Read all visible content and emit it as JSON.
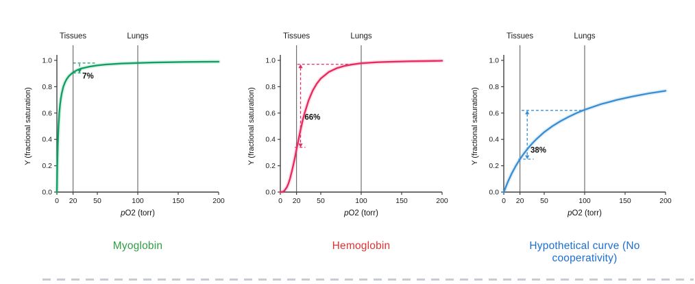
{
  "page": {
    "background": "#ffffff",
    "bottom_dash_color": "#c6ccd1",
    "axis_color": "#3f3f3f",
    "reference_line_color": "#6e6e6e"
  },
  "chart_data": [
    {
      "type": "line",
      "title": "Myoglobin",
      "title_color": "#2f9e44",
      "curve_color": "#119e63",
      "xlabel_prefix": "p",
      "xlabel_rest": "O2 (torr)",
      "ylabel": "Y (fractional saturation)",
      "xlim": [
        0,
        200
      ],
      "ylim": [
        0,
        1.0
      ],
      "x_ticks": [
        0,
        20,
        50,
        100,
        150,
        200
      ],
      "y_ticks": [
        0,
        0.2,
        0.4,
        0.6,
        0.8,
        1.0
      ],
      "ref_lines": [
        {
          "x": 20,
          "label": "Tissues"
        },
        {
          "x": 100,
          "label": "Lungs"
        }
      ],
      "y_at_tissues": 0.91,
      "y_at_lungs": 0.98,
      "points": [
        [
          0,
          0
        ],
        [
          0.5,
          0.2
        ],
        [
          1,
          0.333
        ],
        [
          1.5,
          0.429
        ],
        [
          2,
          0.5
        ],
        [
          3,
          0.6
        ],
        [
          4,
          0.667
        ],
        [
          5,
          0.714
        ],
        [
          6,
          0.75
        ],
        [
          8,
          0.8
        ],
        [
          10,
          0.833
        ],
        [
          12,
          0.857
        ],
        [
          15,
          0.882
        ],
        [
          20,
          0.909
        ],
        [
          25,
          0.926
        ],
        [
          30,
          0.938
        ],
        [
          40,
          0.952
        ],
        [
          50,
          0.962
        ],
        [
          60,
          0.968
        ],
        [
          80,
          0.976
        ],
        [
          100,
          0.98
        ],
        [
          120,
          0.984
        ],
        [
          140,
          0.986
        ],
        [
          160,
          0.988
        ],
        [
          180,
          0.989
        ],
        [
          200,
          0.99
        ]
      ],
      "annotation": {
        "label": "7%",
        "label_pos": [
          31.5,
          0.862
        ],
        "top_line": {
          "y": 0.98,
          "x1": 20,
          "x2": 47
        },
        "bottom_line": {
          "y": 0.905,
          "x1": 20,
          "x2": 33
        },
        "arrow": {
          "x": 28,
          "y1": 0.98,
          "y2": 0.905,
          "double": false
        }
      }
    },
    {
      "type": "line",
      "title": "Hemoglobin",
      "title_color": "#e23131",
      "curve_color": "#e72a5f",
      "xlabel_prefix": "p",
      "xlabel_rest": "O2 (torr)",
      "ylabel": "Y (fractional saturation)",
      "xlim": [
        0,
        200
      ],
      "ylim": [
        0,
        1.0
      ],
      "x_ticks": [
        0,
        20,
        50,
        100,
        150,
        200
      ],
      "y_ticks": [
        0,
        0.2,
        0.4,
        0.6,
        0.8,
        1.0
      ],
      "ref_lines": [
        {
          "x": 20,
          "label": "Tissues"
        },
        {
          "x": 100,
          "label": "Lungs"
        }
      ],
      "y_at_tissues": 0.32,
      "y_at_lungs": 0.98,
      "points": [
        [
          0,
          0
        ],
        [
          3,
          0.002
        ],
        [
          5,
          0.01
        ],
        [
          8,
          0.036
        ],
        [
          10,
          0.064
        ],
        [
          12,
          0.103
        ],
        [
          15,
          0.177
        ],
        [
          18,
          0.259
        ],
        [
          20,
          0.324
        ],
        [
          22,
          0.385
        ],
        [
          25,
          0.473
        ],
        [
          28,
          0.552
        ],
        [
          30,
          0.599
        ],
        [
          35,
          0.697
        ],
        [
          40,
          0.77
        ],
        [
          45,
          0.823
        ],
        [
          50,
          0.862
        ],
        [
          60,
          0.912
        ],
        [
          70,
          0.941
        ],
        [
          80,
          0.959
        ],
        [
          90,
          0.97
        ],
        [
          100,
          0.978
        ],
        [
          120,
          0.986
        ],
        [
          140,
          0.99
        ],
        [
          160,
          0.993
        ],
        [
          180,
          0.995
        ],
        [
          200,
          0.997
        ]
      ],
      "annotation": {
        "label": "66%",
        "label_pos": [
          30,
          0.55
        ],
        "top_line": {
          "y": 0.97,
          "x1": 21,
          "x2": 90
        },
        "bottom_line": {
          "y": 0.34,
          "x1": 18,
          "x2": 31
        },
        "arrow": {
          "x": 25,
          "y1": 0.97,
          "y2": 0.34,
          "double": true
        }
      }
    },
    {
      "type": "line",
      "title": "Hypothetical curve (No cooperativity)",
      "title_color": "#1b6ed6",
      "curve_color": "#3b8ed2",
      "xlabel_prefix": "p",
      "xlabel_rest": "O2 (torr)",
      "ylabel": "Y (fractional saturation)",
      "xlim": [
        0,
        200
      ],
      "ylim": [
        0,
        1.0
      ],
      "x_ticks": [
        0,
        20,
        50,
        100,
        150,
        200
      ],
      "y_ticks": [
        0,
        0.2,
        0.4,
        0.6,
        0.8,
        1.0
      ],
      "ref_lines": [
        {
          "x": 20,
          "label": "Tissues"
        },
        {
          "x": 100,
          "label": "Lungs"
        }
      ],
      "y_at_tissues": 0.25,
      "y_at_lungs": 0.62,
      "points": [
        [
          0,
          0
        ],
        [
          5,
          0.077
        ],
        [
          10,
          0.143
        ],
        [
          15,
          0.2
        ],
        [
          20,
          0.25
        ],
        [
          25,
          0.294
        ],
        [
          30,
          0.333
        ],
        [
          35,
          0.368
        ],
        [
          40,
          0.4
        ],
        [
          50,
          0.455
        ],
        [
          60,
          0.5
        ],
        [
          70,
          0.538
        ],
        [
          80,
          0.571
        ],
        [
          90,
          0.6
        ],
        [
          100,
          0.625
        ],
        [
          120,
          0.667
        ],
        [
          140,
          0.7
        ],
        [
          160,
          0.727
        ],
        [
          180,
          0.75
        ],
        [
          200,
          0.769
        ]
      ],
      "annotation": {
        "label": "38%",
        "label_pos": [
          33,
          0.3
        ],
        "top_line": {
          "y": 0.62,
          "x1": 22,
          "x2": 100
        },
        "bottom_line": {
          "y": 0.25,
          "x1": 18,
          "x2": 37
        },
        "arrow": {
          "x": 29,
          "y1": 0.62,
          "y2": 0.25,
          "double": true
        }
      }
    }
  ]
}
